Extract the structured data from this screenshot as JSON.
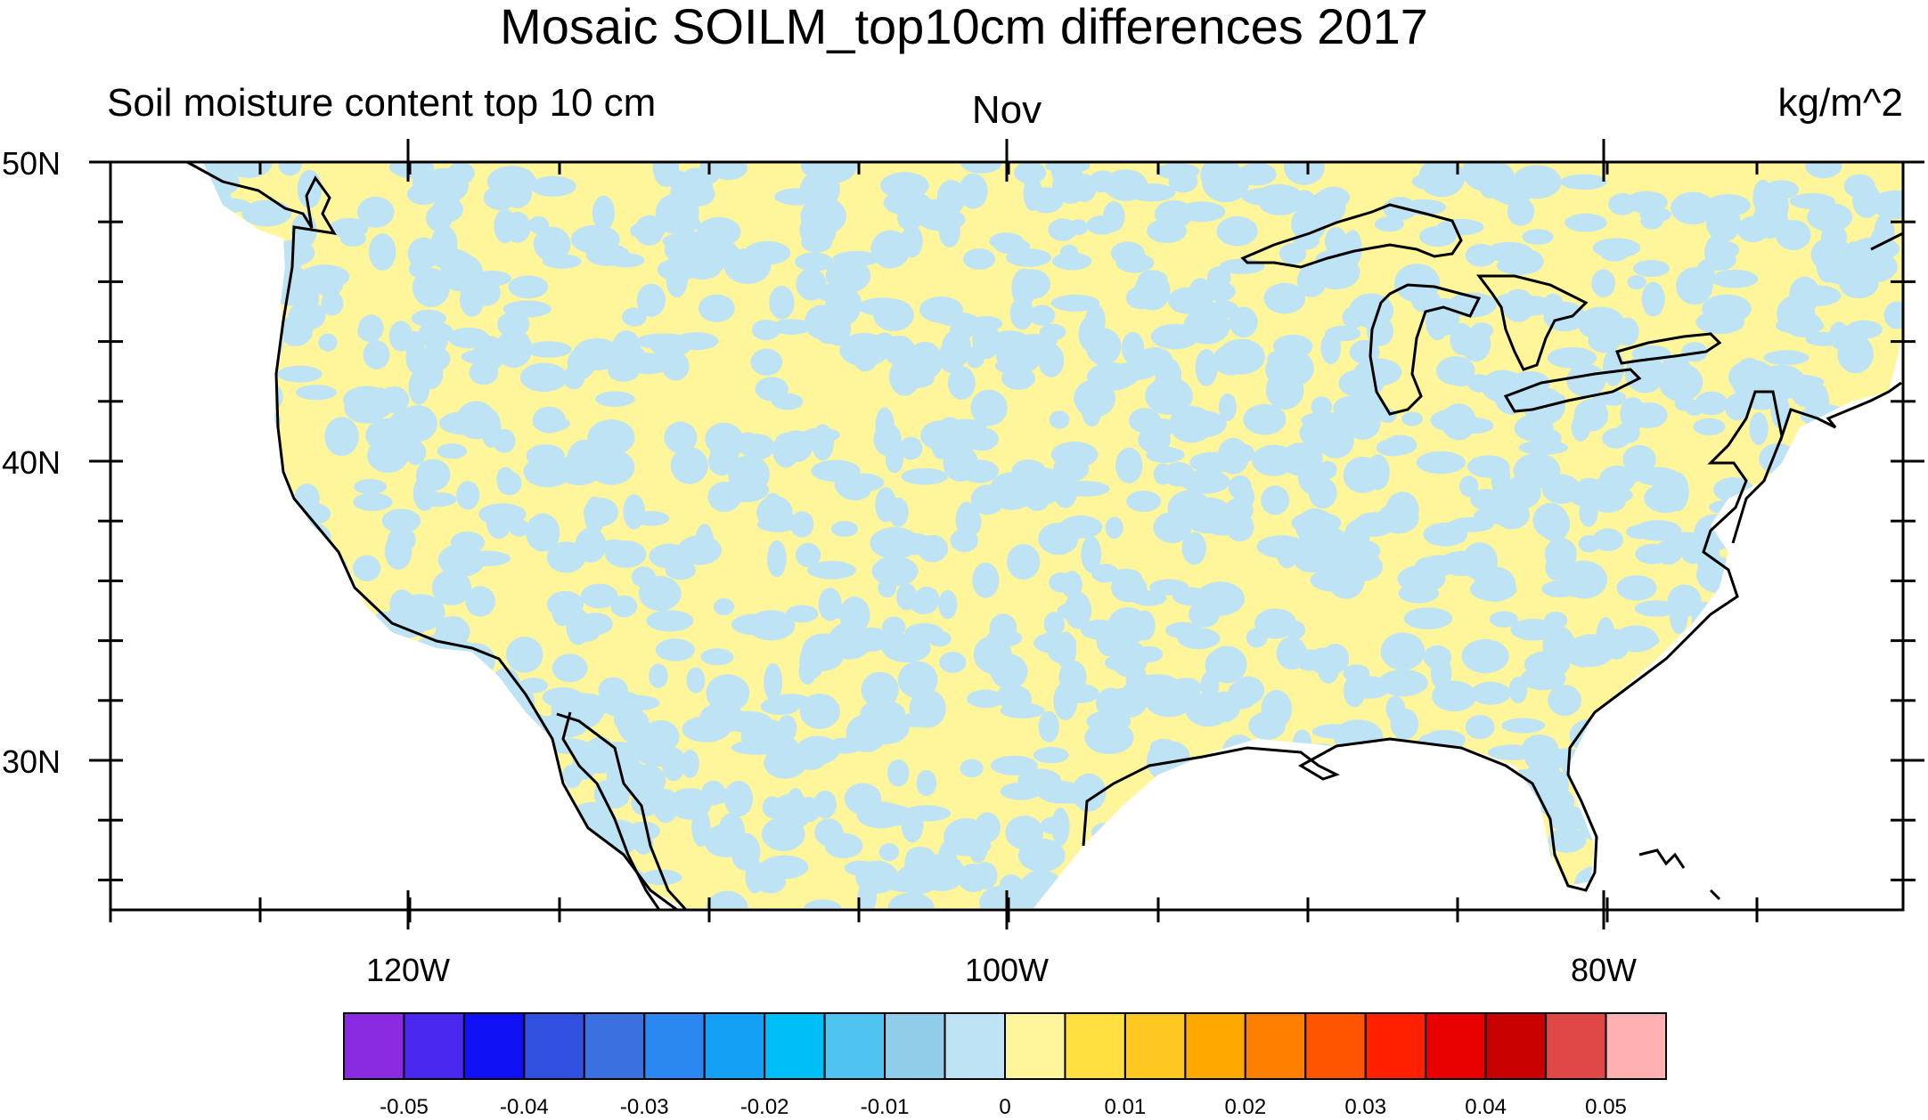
{
  "title": "Mosaic SOILM_top10cm differences 2017",
  "left_subtitle": "Soil moisture content top 10 cm",
  "center_subtitle": "Nov",
  "right_subtitle": "kg/m^2",
  "lat_labels": [
    "50N",
    "40N",
    "30N"
  ],
  "lon_labels": [
    "120W",
    "100W",
    "80W"
  ],
  "colorbar": {
    "colors": [
      "#8a2be2",
      "#4b28f0",
      "#1010f5",
      "#3050e0",
      "#3a70e0",
      "#2b88f0",
      "#14a0f5",
      "#00bff8",
      "#50c4f0",
      "#90cde8",
      "#bde3f5",
      "#fff59a",
      "#ffe040",
      "#ffc820",
      "#ffa800",
      "#ff8000",
      "#ff5500",
      "#ff2000",
      "#e80000",
      "#c80000",
      "#e04848",
      "#ffb0b0"
    ],
    "labels": [
      "-0.05",
      "-0.04",
      "-0.03",
      "-0.02",
      "-0.01",
      "0",
      "0.01",
      "0.02",
      "0.03",
      "0.04",
      "0.05"
    ]
  },
  "field_colors": {
    "negative": "#bde3f5",
    "positive": "#fff59a"
  }
}
